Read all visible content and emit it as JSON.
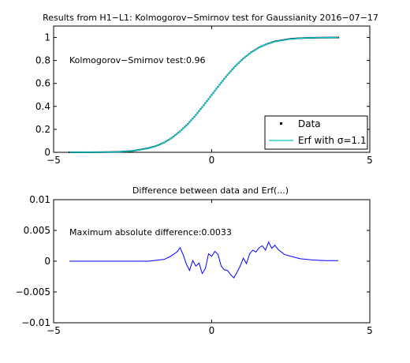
{
  "chart_data": [
    {
      "type": "line",
      "title": "Results from H1−L1: Kolmogorov−Smirnov test for Gaussianity 2016−07−17",
      "xlim": [
        -5,
        5
      ],
      "ylim": [
        0,
        1.1
      ],
      "xticks": [
        -5,
        0,
        5
      ],
      "xtick_labels": [
        "−5",
        "0",
        "5"
      ],
      "yticks": [
        0,
        0.2,
        0.4,
        0.6,
        0.8,
        1
      ],
      "ytick_labels": [
        "0",
        "0.2",
        "0.4",
        "0.6",
        "0.8",
        "1"
      ],
      "annotation": "Kolmogorov−Smirnov test:0.96",
      "legend_position": "bottom-right",
      "series": [
        {
          "name": "Data",
          "style": "dots",
          "color": "#000000",
          "x": [
            -4.5,
            -4,
            -3.5,
            -3,
            -2.5,
            -2,
            -1.75,
            -1.5,
            -1.25,
            -1,
            -0.75,
            -0.5,
            -0.25,
            0,
            0.25,
            0.5,
            0.75,
            1,
            1.25,
            1.5,
            1.75,
            2,
            2.5,
            3,
            3.5,
            4
          ],
          "y": [
            0,
            0,
            0.001,
            0.003,
            0.012,
            0.036,
            0.056,
            0.086,
            0.128,
            0.183,
            0.248,
            0.325,
            0.411,
            0.5,
            0.589,
            0.675,
            0.752,
            0.817,
            0.872,
            0.914,
            0.944,
            0.966,
            0.989,
            0.997,
            0.999,
            1
          ]
        },
        {
          "name": "Erf with σ=1.1",
          "legend_label_prefix": "Erf with ",
          "legend_sigma_symbol": "σ",
          "legend_sigma_value": "=1.1",
          "style": "line",
          "color": "#00c8c8",
          "sigma": 1.1,
          "x": [
            -4.5,
            -4,
            -3.5,
            -3,
            -2.5,
            -2,
            -1.75,
            -1.5,
            -1.25,
            -1,
            -0.75,
            -0.5,
            -0.25,
            0,
            0.25,
            0.5,
            0.75,
            1,
            1.25,
            1.5,
            1.75,
            2,
            2.5,
            3,
            3.5,
            4
          ],
          "y": [
            0,
            0,
            0.001,
            0.003,
            0.012,
            0.035,
            0.056,
            0.086,
            0.128,
            0.182,
            0.248,
            0.325,
            0.41,
            0.5,
            0.59,
            0.675,
            0.752,
            0.818,
            0.872,
            0.914,
            0.944,
            0.965,
            0.988,
            0.997,
            0.999,
            1
          ]
        }
      ]
    },
    {
      "type": "line",
      "title": "Difference between data and Erf(...)",
      "xlim": [
        -5,
        5
      ],
      "ylim": [
        -0.01,
        0.01
      ],
      "xticks": [
        -5,
        0,
        5
      ],
      "xtick_labels": [
        "−5",
        "0",
        "5"
      ],
      "yticks": [
        -0.01,
        -0.005,
        0,
        0.005,
        0.01
      ],
      "ytick_labels": [
        "−0.01",
        "−0.005",
        "0",
        "0.005",
        "0.01"
      ],
      "annotation": "Maximum absolute difference:0.0033",
      "series": [
        {
          "style": "line",
          "color": "#0000ff",
          "x": [
            -4.5,
            -3,
            -2,
            -1.5,
            -1.3,
            -1.1,
            -1.0,
            -0.9,
            -0.8,
            -0.7,
            -0.6,
            -0.5,
            -0.4,
            -0.3,
            -0.2,
            -0.1,
            0,
            0.1,
            0.2,
            0.3,
            0.4,
            0.5,
            0.6,
            0.7,
            0.8,
            0.9,
            1.0,
            1.1,
            1.2,
            1.3,
            1.4,
            1.5,
            1.6,
            1.7,
            1.8,
            1.9,
            2.0,
            2.1,
            2.3,
            2.5,
            2.8,
            3.2,
            3.6,
            4.0
          ],
          "y": [
            0,
            0,
            0,
            0.0003,
            0.0008,
            0.0015,
            0.0022,
            0.001,
            -0.0005,
            -0.0015,
            0.0001,
            -0.0008,
            -0.0003,
            -0.002,
            -0.0012,
            0.0012,
            0.0008,
            0.0016,
            0.0011,
            -0.0008,
            -0.0014,
            -0.0015,
            -0.0022,
            -0.0027,
            -0.0018,
            -0.0008,
            0.0005,
            -0.0004,
            0.0012,
            0.0018,
            0.0015,
            0.0022,
            0.0025,
            0.0018,
            0.0031,
            0.0021,
            0.0026,
            0.0019,
            0.0011,
            0.0008,
            0.0004,
            0.0002,
            0.0001,
            0.0001
          ]
        }
      ]
    }
  ]
}
